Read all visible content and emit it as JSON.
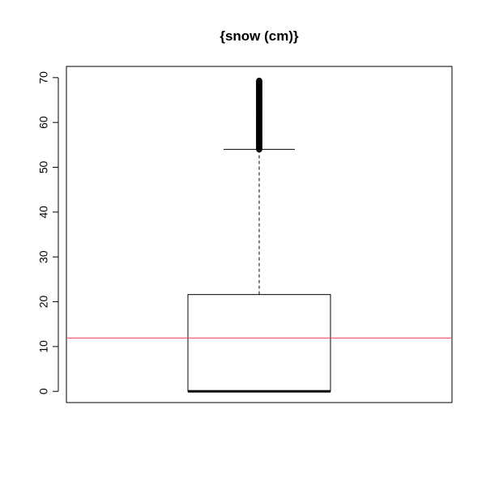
{
  "chart_data": {
    "type": "boxplot",
    "title": "{snow (cm)}",
    "xlabel": "",
    "ylabel": "",
    "ylim": [
      -2.5,
      72.5
    ],
    "yticks": [
      0,
      10,
      20,
      30,
      40,
      50,
      60,
      70
    ],
    "grid": false,
    "box": {
      "min": 0,
      "q1": 0,
      "median": 0,
      "q3": 21.6,
      "whisker_low": 0,
      "whisker_high": 54,
      "outliers_range": [
        54,
        69.3
      ]
    },
    "reference_line": {
      "y": 11.9,
      "color": "#e8505b"
    },
    "colors": {
      "axis": "#000000",
      "box": "#000000",
      "reference": "#e8505b"
    }
  }
}
